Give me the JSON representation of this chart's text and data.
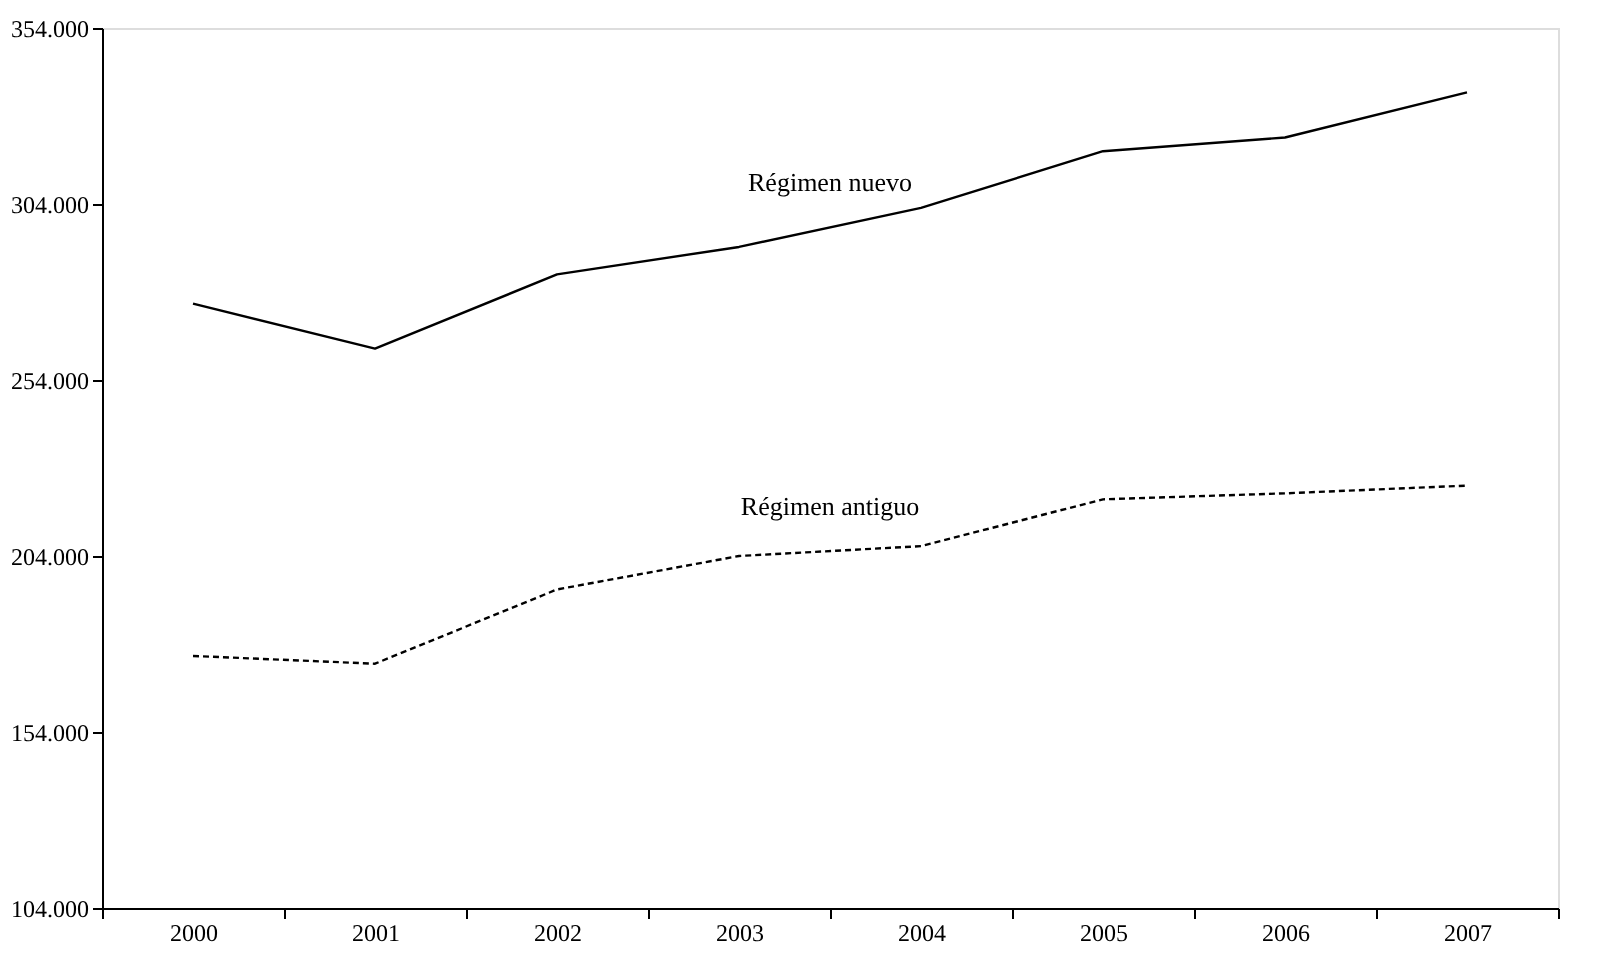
{
  "chart_data": {
    "type": "line",
    "categories": [
      "2000",
      "2001",
      "2002",
      "2003",
      "2004",
      "2005",
      "2006",
      "2007"
    ],
    "series": [
      {
        "name": "Régimen nuevo",
        "color": "#000000",
        "line_style": "solid",
        "values": [
          275700,
          262900,
          284000,
          291800,
          302900,
          319000,
          322900,
          335700
        ]
      },
      {
        "name": "Régimen antiguo",
        "color": "#000000",
        "line_style": "dashed",
        "values": [
          175600,
          173400,
          194500,
          204000,
          206800,
          220100,
          221800,
          224000
        ]
      }
    ],
    "ylim": [
      104000,
      354000
    ],
    "yticks": [
      {
        "value": 104000,
        "label": "104.000"
      },
      {
        "value": 154000,
        "label": "154.000"
      },
      {
        "value": 204000,
        "label": "204.000"
      },
      {
        "value": 254000,
        "label": "254.000"
      },
      {
        "value": 304000,
        "label": "304.000"
      },
      {
        "value": 354000,
        "label": "354.000"
      }
    ],
    "grid": false,
    "marker": "none"
  }
}
